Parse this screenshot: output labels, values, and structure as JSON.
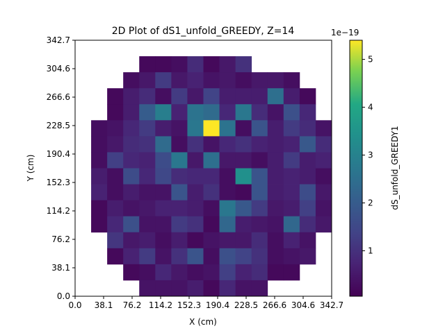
{
  "chart_data": {
    "type": "heatmap",
    "title": "2D Plot of dS1_unfold_GREEDY, Z=14",
    "xlabel": "X (cm)",
    "ylabel": "Y (cm)",
    "xlim": [
      0.0,
      342.7
    ],
    "ylim": [
      0.0,
      342.7
    ],
    "x_ticks": [
      "0.0",
      "38.1",
      "76.2",
      "114.2",
      "152.3",
      "190.4",
      "228.5",
      "266.6",
      "304.6",
      "342.7"
    ],
    "y_ticks": [
      "0.0",
      "38.1",
      "76.2",
      "114.2",
      "152.3",
      "190.4",
      "228.5",
      "266.6",
      "304.6",
      "342.7"
    ],
    "grid": false,
    "bin_count": 16,
    "colorbar": {
      "label": "dS_unfold_GREEDY1",
      "range": [
        0.05,
        5.4
      ],
      "ticks": [
        "1",
        "2",
        "3",
        "4",
        "5"
      ],
      "tick_values": [
        1,
        2,
        3,
        4,
        5
      ],
      "offset_label": "1e−19",
      "colormap": "viridis"
    },
    "rows_top_to_bottom": [
      [
        null,
        null,
        null,
        null,
        null,
        null,
        null,
        null,
        null,
        null,
        null,
        null,
        null,
        null,
        null,
        null
      ],
      [
        null,
        null,
        null,
        null,
        0.2,
        0.2,
        0.3,
        0.9,
        0.2,
        0.5,
        1.0,
        null,
        null,
        null,
        null,
        null
      ],
      [
        null,
        null,
        null,
        0.3,
        0.5,
        1.2,
        0.5,
        0.7,
        0.4,
        0.5,
        0.3,
        0.5,
        0.5,
        0.3,
        null,
        null
      ],
      [
        null,
        null,
        0.2,
        0.6,
        0.9,
        0.3,
        1.2,
        0.5,
        1.4,
        0.6,
        0.6,
        0.6,
        2.5,
        0.6,
        0.2,
        null
      ],
      [
        null,
        null,
        0.2,
        0.6,
        2.0,
        2.9,
        0.7,
        2.6,
        2.4,
        0.8,
        2.7,
        0.9,
        0.4,
        1.7,
        0.8,
        null
      ],
      [
        null,
        0.3,
        0.4,
        0.8,
        1.2,
        0.6,
        0.4,
        2.7,
        5.4,
        2.6,
        0.3,
        1.8,
        0.6,
        1.2,
        0.9,
        0.4
      ],
      [
        null,
        0.3,
        0.5,
        0.9,
        1.0,
        2.4,
        0.3,
        1.0,
        0.4,
        0.8,
        1.0,
        0.7,
        0.6,
        0.7,
        1.9,
        0.9
      ],
      [
        null,
        0.3,
        1.3,
        0.8,
        0.7,
        1.6,
        2.7,
        0.5,
        2.5,
        0.5,
        0.5,
        0.3,
        0.6,
        1.2,
        0.6,
        0.7
      ],
      [
        null,
        0.6,
        0.3,
        1.6,
        0.8,
        1.5,
        0.9,
        0.8,
        0.8,
        0.3,
        3.4,
        1.8,
        0.6,
        0.7,
        0.6,
        0.3
      ],
      [
        null,
        0.7,
        0.3,
        0.6,
        0.4,
        0.4,
        1.8,
        0.6,
        1.0,
        0.3,
        0.2,
        1.8,
        0.6,
        0.7,
        1.6,
        0.5
      ],
      [
        null,
        0.2,
        0.6,
        0.4,
        0.5,
        0.7,
        0.7,
        0.6,
        0.3,
        2.7,
        1.9,
        1.2,
        0.5,
        0.6,
        1.3,
        0.4
      ],
      [
        null,
        0.2,
        0.8,
        1.7,
        0.4,
        0.4,
        1.2,
        1.0,
        0.2,
        2.3,
        0.6,
        0.5,
        0.4,
        2.3,
        0.9,
        0.5
      ],
      [
        null,
        null,
        1.1,
        0.5,
        0.6,
        0.3,
        0.6,
        0.2,
        0.4,
        0.5,
        0.5,
        0.9,
        0.3,
        0.7,
        0.4,
        null
      ],
      [
        null,
        null,
        0.2,
        0.7,
        1.2,
        0.4,
        1.0,
        1.8,
        0.3,
        1.7,
        1.4,
        1.0,
        0.3,
        0.4,
        0.5,
        null
      ],
      [
        null,
        null,
        null,
        0.2,
        0.3,
        0.8,
        0.5,
        0.3,
        0.4,
        1.3,
        0.7,
        0.9,
        0.2,
        0.2,
        null,
        null
      ],
      [
        null,
        null,
        null,
        null,
        0.4,
        0.4,
        0.4,
        0.6,
        0.2,
        0.8,
        0.4,
        0.4,
        null,
        null,
        null,
        null
      ]
    ]
  }
}
